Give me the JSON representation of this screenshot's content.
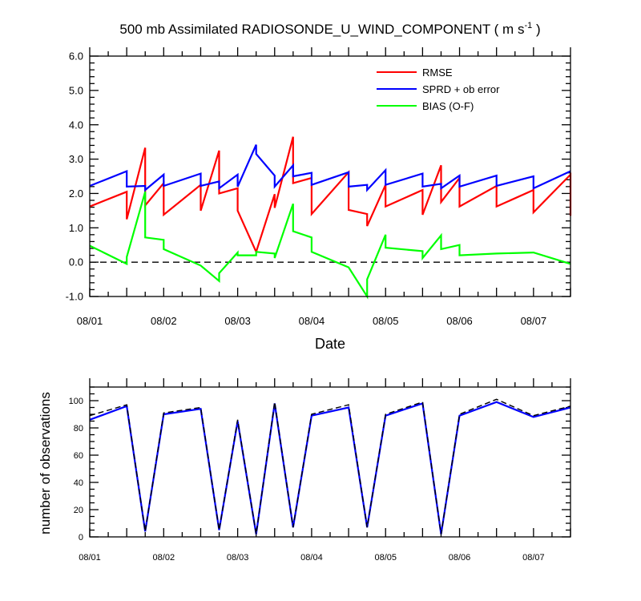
{
  "chart_data": [
    {
      "type": "line",
      "title": "500 mb Assimilated RADIOSONDE_U_WIND_COMPONENT ( m s",
      "title_sup": "-1",
      "title_end": " )",
      "xlabel": "Date",
      "ylabel": "",
      "ylim": [
        -1.0,
        6.0
      ],
      "y_ticks": [
        "-1.0",
        "0.0",
        "1.0",
        "2.0",
        "3.0",
        "4.0",
        "5.0",
        "6.0"
      ],
      "x_ticks": [
        "08/01",
        "08/02",
        "08/03",
        "08/04",
        "08/05",
        "08/06",
        "08/07"
      ],
      "x_unit": "days since 08/01 00Z",
      "xlim": [
        0,
        6.5
      ],
      "zero_line": "dashed",
      "legend_position": "top-right",
      "series": [
        {
          "name": "RMSE",
          "color": "#ff0000",
          "segments": [
            [
              [
                0.0,
                1.62
              ],
              [
                0.5,
                2.05
              ]
            ],
            [
              [
                0.5,
                1.25
              ],
              [
                0.75,
                3.33
              ]
            ],
            [
              [
                0.75,
                1.65
              ],
              [
                1.0,
                2.3
              ]
            ],
            [
              [
                1.0,
                1.38
              ],
              [
                1.5,
                2.25
              ]
            ],
            [
              [
                1.5,
                1.5
              ],
              [
                1.75,
                3.25
              ]
            ],
            [
              [
                1.75,
                2.0
              ],
              [
                2.0,
                2.15
              ]
            ],
            [
              [
                2.0,
                1.5
              ],
              [
                2.25,
                0.3
              ],
              [
                2.5,
                1.98
              ]
            ],
            [
              [
                2.5,
                1.58
              ],
              [
                2.75,
                3.65
              ]
            ],
            [
              [
                2.75,
                2.3
              ],
              [
                3.0,
                2.45
              ]
            ],
            [
              [
                3.0,
                1.4
              ],
              [
                3.5,
                2.62
              ]
            ],
            [
              [
                3.5,
                1.52
              ],
              [
                3.75,
                1.4
              ]
            ],
            [
              [
                3.75,
                1.05
              ],
              [
                4.0,
                2.25
              ]
            ],
            [
              [
                4.0,
                1.62
              ],
              [
                4.5,
                2.1
              ]
            ],
            [
              [
                4.5,
                1.38
              ],
              [
                4.75,
                2.82
              ]
            ],
            [
              [
                4.75,
                1.75
              ],
              [
                5.0,
                2.45
              ]
            ],
            [
              [
                5.0,
                1.62
              ],
              [
                5.5,
                2.22
              ]
            ],
            [
              [
                5.5,
                1.62
              ],
              [
                6.0,
                2.1
              ]
            ],
            [
              [
                6.0,
                1.45
              ],
              [
                6.5,
                2.55
              ]
            ],
            [
              [
                6.5,
                1.35
              ]
            ]
          ]
        },
        {
          "name": "SPRD + ob error",
          "color": "#0000ff",
          "segments": [
            [
              [
                0.0,
                2.22
              ],
              [
                0.5,
                2.65
              ]
            ],
            [
              [
                0.5,
                2.2
              ],
              [
                0.75,
                2.22
              ]
            ],
            [
              [
                0.75,
                2.1
              ],
              [
                1.0,
                2.55
              ]
            ],
            [
              [
                1.0,
                2.22
              ],
              [
                1.5,
                2.58
              ]
            ],
            [
              [
                1.5,
                2.22
              ],
              [
                1.75,
                2.35
              ]
            ],
            [
              [
                1.75,
                2.15
              ],
              [
                2.0,
                2.55
              ]
            ],
            [
              [
                2.0,
                2.2
              ],
              [
                2.25,
                3.42
              ]
            ],
            [
              [
                2.25,
                3.15
              ],
              [
                2.5,
                2.52
              ]
            ],
            [
              [
                2.5,
                2.2
              ],
              [
                2.75,
                2.82
              ]
            ],
            [
              [
                2.75,
                2.5
              ],
              [
                3.0,
                2.6
              ]
            ],
            [
              [
                3.0,
                2.25
              ],
              [
                3.5,
                2.62
              ]
            ],
            [
              [
                3.5,
                2.2
              ],
              [
                3.75,
                2.25
              ]
            ],
            [
              [
                3.75,
                2.1
              ],
              [
                4.0,
                2.68
              ]
            ],
            [
              [
                4.0,
                2.25
              ],
              [
                4.5,
                2.58
              ]
            ],
            [
              [
                4.5,
                2.2
              ],
              [
                4.75,
                2.28
              ]
            ],
            [
              [
                4.75,
                2.15
              ],
              [
                5.0,
                2.52
              ]
            ],
            [
              [
                5.0,
                2.2
              ],
              [
                5.5,
                2.52
              ]
            ],
            [
              [
                5.5,
                2.22
              ],
              [
                6.0,
                2.5
              ]
            ],
            [
              [
                6.0,
                2.15
              ],
              [
                6.5,
                2.65
              ]
            ]
          ]
        },
        {
          "name": "BIAS (O-F)",
          "color": "#00ff00",
          "segments": [
            [
              [
                0.0,
                0.48
              ],
              [
                0.5,
                -0.05
              ]
            ],
            [
              [
                0.5,
                0.15
              ],
              [
                0.75,
                2.05
              ]
            ],
            [
              [
                0.75,
                0.72
              ],
              [
                1.0,
                0.65
              ]
            ],
            [
              [
                1.0,
                0.38
              ],
              [
                1.5,
                -0.1
              ]
            ],
            [
              [
                1.5,
                -0.1
              ],
              [
                1.75,
                -0.55
              ]
            ],
            [
              [
                1.75,
                -0.32
              ],
              [
                2.0,
                0.28
              ]
            ],
            [
              [
                2.0,
                0.2
              ],
              [
                2.25,
                0.2
              ]
            ],
            [
              [
                2.25,
                0.3
              ],
              [
                2.5,
                0.25
              ]
            ],
            [
              [
                2.5,
                0.12
              ],
              [
                2.75,
                1.7
              ]
            ],
            [
              [
                2.75,
                0.9
              ],
              [
                3.0,
                0.72
              ]
            ],
            [
              [
                3.0,
                0.3
              ],
              [
                3.5,
                -0.15
              ],
              [
                3.75,
                -1.0
              ]
            ],
            [
              [
                3.75,
                -0.5
              ],
              [
                4.0,
                0.8
              ]
            ],
            [
              [
                4.0,
                0.42
              ],
              [
                4.5,
                0.32
              ],
              [
                4.5,
                0.12
              ]
            ],
            [
              [
                4.5,
                0.12
              ],
              [
                4.75,
                0.78
              ]
            ],
            [
              [
                4.75,
                0.38
              ],
              [
                5.0,
                0.5
              ]
            ],
            [
              [
                5.0,
                0.2
              ],
              [
                5.5,
                0.25
              ],
              [
                6.0,
                0.28
              ],
              [
                6.5,
                -0.05
              ]
            ]
          ]
        }
      ]
    },
    {
      "type": "line",
      "title": "",
      "xlabel": "",
      "ylabel": "number of observations",
      "ylim": [
        0,
        110
      ],
      "y_ticks": [
        "0",
        "20",
        "40",
        "60",
        "80",
        "100"
      ],
      "x_ticks": [
        "08/01",
        "08/02",
        "08/03",
        "08/04",
        "08/05",
        "08/06",
        "08/07"
      ],
      "x_unit": "days since 08/01 00Z",
      "xlim": [
        0,
        6.5
      ],
      "x": [
        0.0,
        0.5,
        0.75,
        1.0,
        1.5,
        1.75,
        2.0,
        2.25,
        2.5,
        2.75,
        3.0,
        3.5,
        3.75,
        4.0,
        4.5,
        4.75,
        5.0,
        5.5,
        6.0,
        6.5
      ],
      "series": [
        {
          "style": "solid",
          "color": "#0000ff",
          "values": [
            86,
            96,
            4,
            90,
            94,
            5,
            85,
            2,
            98,
            7,
            89,
            95,
            7,
            89,
            98,
            2,
            89,
            99,
            88,
            95
          ]
        },
        {
          "style": "dashed",
          "color": "#000000",
          "values": [
            89,
            97,
            4,
            91,
            95,
            5,
            86,
            2,
            99,
            7,
            90,
            97,
            7,
            90,
            99,
            2,
            90,
            101,
            89,
            96
          ]
        }
      ]
    }
  ]
}
